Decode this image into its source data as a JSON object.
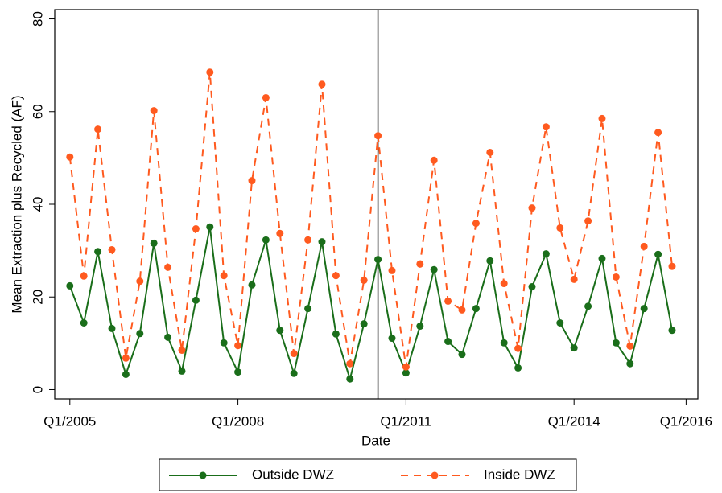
{
  "chart_data": {
    "type": "line",
    "x_label": "Date",
    "y_label": "Mean Extraction plus Recycled (AF)",
    "x": [
      2005,
      2005.25,
      2005.5,
      2005.75,
      2006,
      2006.25,
      2006.5,
      2006.75,
      2007,
      2007.25,
      2007.5,
      2007.75,
      2008,
      2008.25,
      2008.5,
      2008.75,
      2009,
      2009.25,
      2009.5,
      2009.75,
      2010,
      2010.25,
      2010.5,
      2010.75,
      2011,
      2011.25,
      2011.5,
      2011.75,
      2012,
      2012.25,
      2012.5,
      2012.75,
      2013,
      2013.25,
      2013.5,
      2013.75,
      2014,
      2014.25,
      2014.5,
      2014.75,
      2015,
      2015.25,
      2015.5,
      2015.75
    ],
    "series": [
      {
        "name": "Outside DWZ",
        "color": "#1a6e1a",
        "dashed": false,
        "values": [
          22.4,
          14.4,
          29.8,
          13.2,
          3.3,
          12.1,
          31.6,
          11.3,
          4.0,
          19.3,
          35.1,
          10.1,
          3.8,
          22.6,
          32.3,
          12.8,
          3.5,
          17.5,
          31.9,
          12.0,
          2.3,
          14.2,
          28.1,
          11.1,
          3.6,
          13.7,
          25.9,
          10.4,
          7.6,
          17.5,
          27.8,
          10.1,
          4.7,
          22.2,
          29.3,
          14.4,
          9.0,
          18.0,
          28.3,
          10.1,
          5.6,
          17.5,
          29.2,
          12.8
        ]
      },
      {
        "name": "Inside DWZ",
        "color": "#ff5a1f",
        "dashed": true,
        "values": [
          50.2,
          24.5,
          56.2,
          30.2,
          6.8,
          23.4,
          60.2,
          26.4,
          8.5,
          34.7,
          68.5,
          24.6,
          9.5,
          45.1,
          63.0,
          33.7,
          7.8,
          32.3,
          65.9,
          24.6,
          5.6,
          23.6,
          54.8,
          25.7,
          4.9,
          27.1,
          49.5,
          19.1,
          17.2,
          35.9,
          51.2,
          22.9,
          8.9,
          39.2,
          56.7,
          34.9,
          23.8,
          36.4,
          58.5,
          24.3,
          9.4,
          30.9,
          55.5,
          26.6
        ]
      }
    ],
    "vline": 2010.5,
    "xlim": [
      2004.73,
      2016.21
    ],
    "ylim": [
      -2,
      82
    ],
    "xticks": [
      {
        "value": 2005,
        "label": "Q1/2005"
      },
      {
        "value": 2008,
        "label": "Q1/2008"
      },
      {
        "value": 2011,
        "label": "Q1/2011"
      },
      {
        "value": 2014,
        "label": "Q1/2014"
      },
      {
        "value": 2016,
        "label": "Q1/2016"
      }
    ],
    "yticks": [
      0,
      20,
      40,
      60,
      80
    ],
    "legend": "bottom"
  }
}
